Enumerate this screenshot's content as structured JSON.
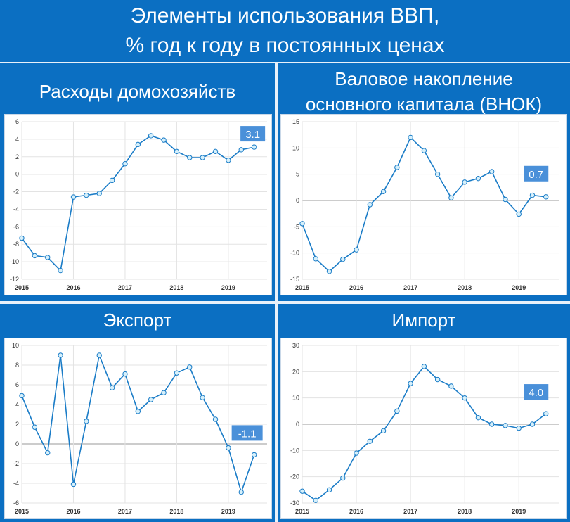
{
  "title_line1": "Элементы использования ВВП,",
  "title_line2": "% год к году в постоянных ценах",
  "chart_data": [
    {
      "type": "line",
      "title": "Расходы домохозяйств",
      "x": [
        2015.0,
        2015.25,
        2015.5,
        2015.75,
        2016.0,
        2016.25,
        2016.5,
        2016.75,
        2017.0,
        2017.25,
        2017.5,
        2017.75,
        2018.0,
        2018.25,
        2018.5,
        2018.75,
        2019.0,
        2019.25,
        2019.5
      ],
      "values": [
        -7.3,
        -9.3,
        -9.5,
        -11.0,
        -2.6,
        -2.4,
        -2.2,
        -0.7,
        1.2,
        3.4,
        4.4,
        3.9,
        2.6,
        1.9,
        1.9,
        2.6,
        1.6,
        2.8,
        3.1
      ],
      "ylim": [
        -12,
        6
      ],
      "yticks": [
        6,
        4,
        2,
        0,
        -2,
        -4,
        -6,
        -8,
        -10,
        -12
      ],
      "xticks": [
        "2015",
        "2016",
        "2017",
        "2018",
        "2019"
      ],
      "last_label": "3.1",
      "grid": true
    },
    {
      "type": "line",
      "title": "Валовое накопление основного капитала (ВНОК)",
      "title_line1": "Валовое накопление",
      "title_line2": "основного капитала (ВНОК)",
      "x": [
        2015.0,
        2015.25,
        2015.5,
        2015.75,
        2016.0,
        2016.25,
        2016.5,
        2016.75,
        2017.0,
        2017.25,
        2017.5,
        2017.75,
        2018.0,
        2018.25,
        2018.5,
        2018.75,
        2019.0,
        2019.25,
        2019.5
      ],
      "values": [
        -4.4,
        -11.1,
        -13.5,
        -11.2,
        -9.4,
        -0.8,
        1.7,
        6.3,
        12.0,
        9.5,
        5.0,
        0.5,
        3.5,
        4.2,
        5.5,
        0.2,
        -2.6,
        1.0,
        0.7
      ],
      "ylim": [
        -15,
        15
      ],
      "yticks": [
        15,
        10,
        5,
        0,
        -5,
        -10,
        -15
      ],
      "xticks": [
        "2015",
        "2016",
        "2017",
        "2018",
        "2019"
      ],
      "last_label": "0.7",
      "grid": true
    },
    {
      "type": "line",
      "title": "Экспорт",
      "x": [
        2015.0,
        2015.25,
        2015.5,
        2015.75,
        2016.0,
        2016.25,
        2016.5,
        2016.75,
        2017.0,
        2017.25,
        2017.5,
        2017.75,
        2018.0,
        2018.25,
        2018.5,
        2018.75,
        2019.0,
        2019.25,
        2019.5
      ],
      "values": [
        4.9,
        1.7,
        -0.9,
        9.0,
        -4.1,
        2.3,
        9.0,
        5.7,
        7.1,
        3.3,
        4.5,
        5.2,
        7.2,
        7.8,
        4.7,
        2.5,
        -0.4,
        -4.9,
        -1.1
      ],
      "ylim": [
        -6,
        10
      ],
      "yticks": [
        10,
        8,
        6,
        4,
        2,
        0,
        -2,
        -4,
        -6
      ],
      "xticks": [
        "2015",
        "2016",
        "2017",
        "2018",
        "2019"
      ],
      "last_label": "-1.1",
      "grid": true
    },
    {
      "type": "line",
      "title": "Импорт",
      "x": [
        2015.0,
        2015.25,
        2015.5,
        2015.75,
        2016.0,
        2016.25,
        2016.5,
        2016.75,
        2017.0,
        2017.25,
        2017.5,
        2017.75,
        2018.0,
        2018.25,
        2018.5,
        2018.75,
        2019.0,
        2019.25,
        2019.5
      ],
      "values": [
        -25.5,
        -29.0,
        -25.0,
        -20.5,
        -11.0,
        -6.5,
        -2.5,
        5.0,
        15.5,
        22.0,
        17.0,
        14.5,
        10.0,
        2.5,
        0.0,
        -0.5,
        -1.5,
        0.0,
        4.0
      ],
      "ylim": [
        -30,
        30
      ],
      "yticks": [
        30,
        20,
        10,
        0,
        -10,
        -20,
        -30
      ],
      "xticks": [
        "2015",
        "2016",
        "2017",
        "2018",
        "2019"
      ],
      "last_label": "4.0",
      "grid": true
    }
  ],
  "colors": {
    "background": "#0b6fc2",
    "line": "#1a7cc7",
    "marker_fill": "#d6f0fb",
    "label_bg": "#4a90d9",
    "grid": "#e3e3e3",
    "zero_line": "#999999"
  }
}
